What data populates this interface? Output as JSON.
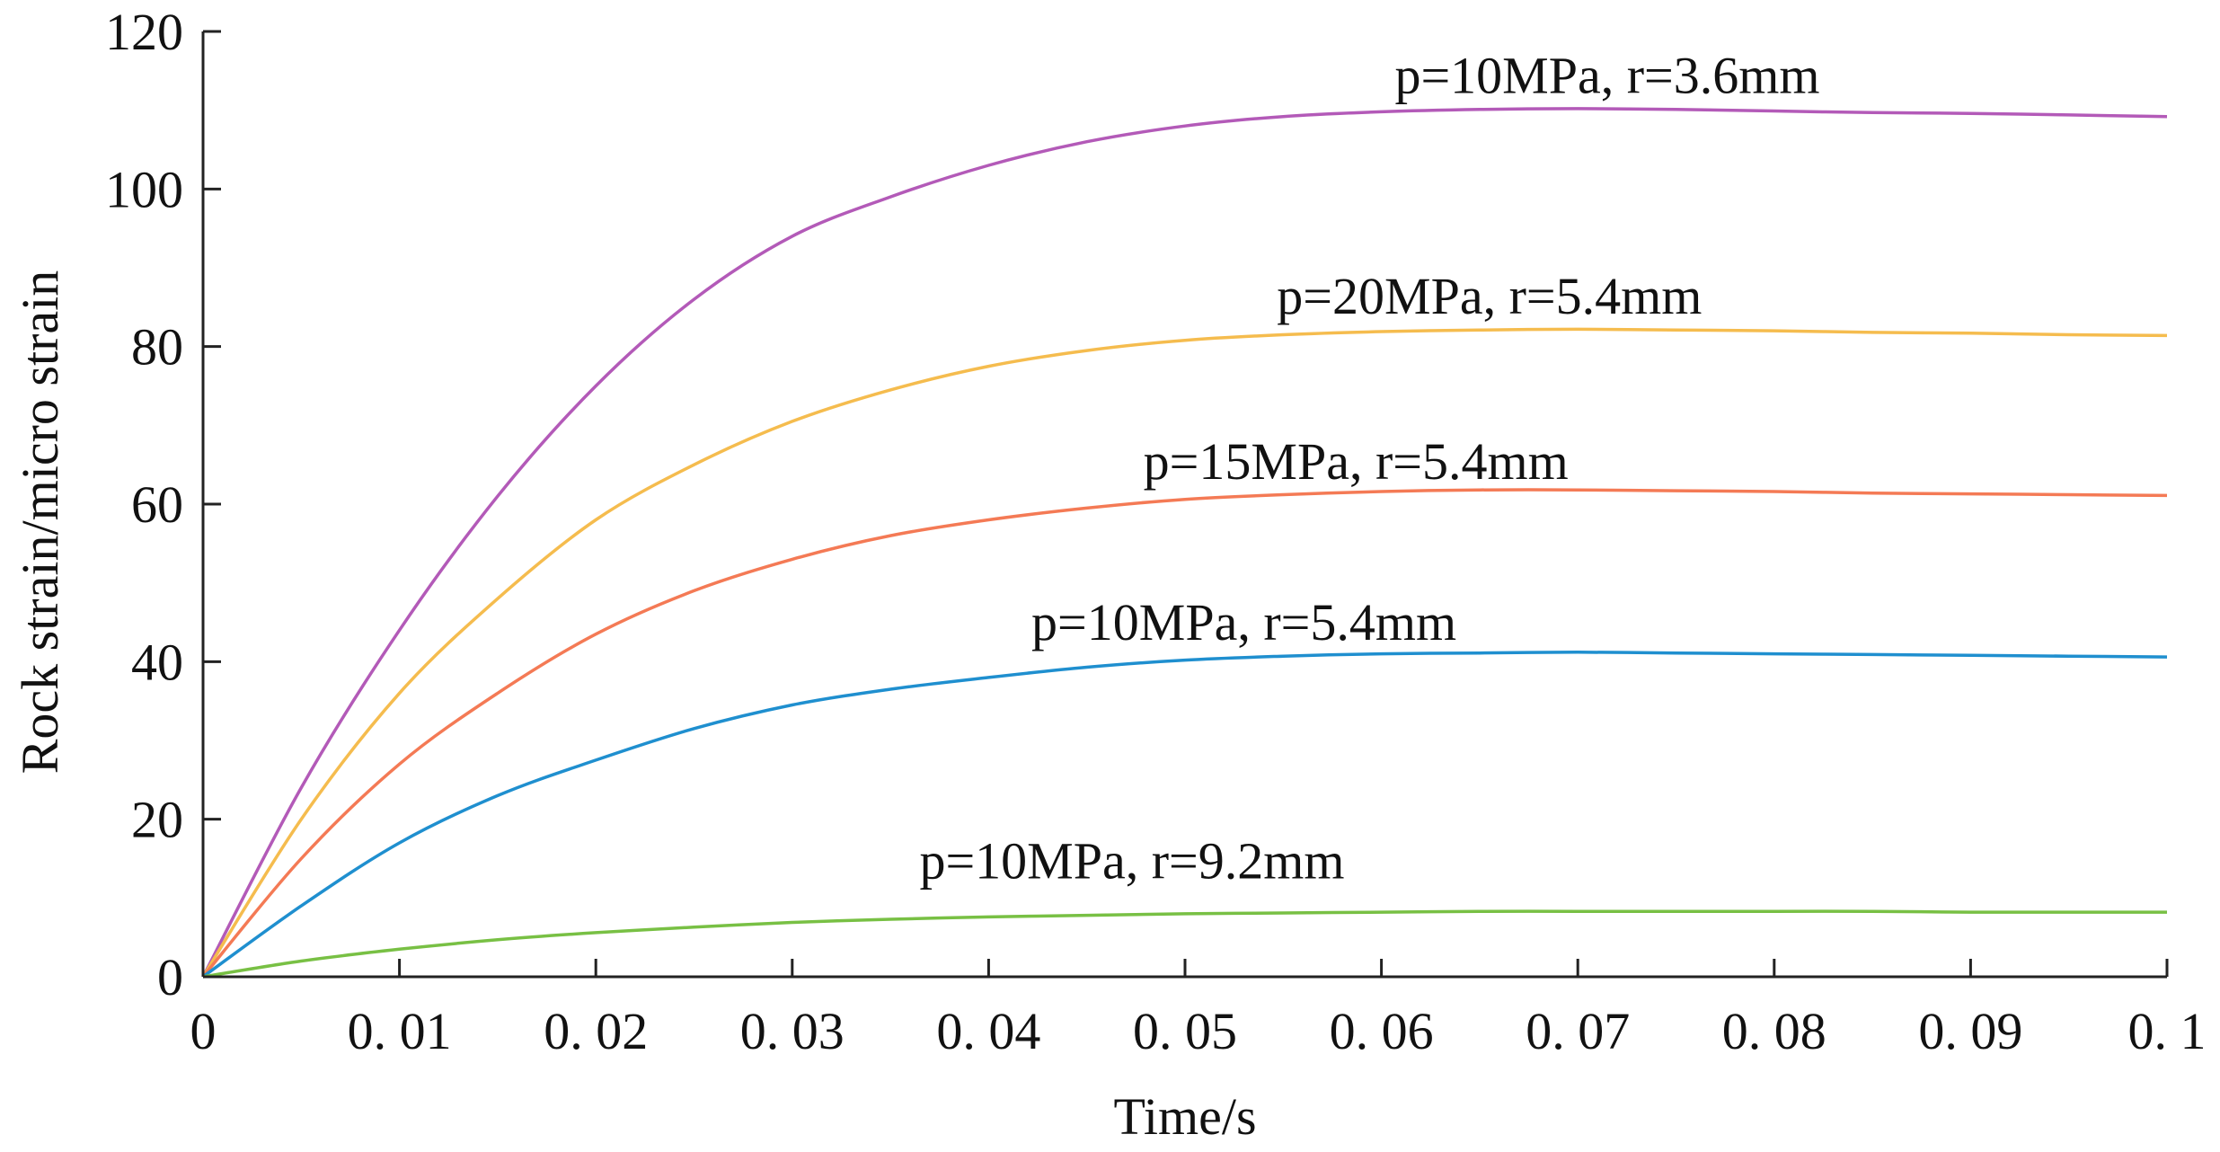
{
  "chart_data": {
    "type": "line",
    "title": "",
    "xlabel": "Time/s",
    "ylabel": "Rock strain/micro strain",
    "xlim": [
      0,
      0.1
    ],
    "ylim": [
      0,
      120
    ],
    "x_ticks": [
      0,
      0.01,
      0.02,
      0.03,
      0.04,
      0.05,
      0.06,
      0.07,
      0.08,
      0.09,
      0.1
    ],
    "x_tick_labels": [
      "0",
      "0. 01",
      "0. 02",
      "0. 03",
      "0. 04",
      "0. 05",
      "0. 06",
      "0. 07",
      "0. 08",
      "0. 09",
      "0. 1"
    ],
    "y_ticks": [
      0,
      20,
      40,
      60,
      80,
      100,
      120
    ],
    "y_tick_labels": [
      "0",
      "20",
      "40",
      "60",
      "80",
      "100",
      "120"
    ],
    "grid": false,
    "legend": "inline labels above curves",
    "series": [
      {
        "name": "p=10MPa, r=3.6mm",
        "color": "#b35ab8",
        "x": [
          0,
          0.005,
          0.01,
          0.015,
          0.02,
          0.025,
          0.03,
          0.035,
          0.04,
          0.045,
          0.05,
          0.055,
          0.06,
          0.065,
          0.07,
          0.075,
          0.08,
          0.085,
          0.09,
          0.095,
          0.1
        ],
        "y": [
          0,
          24,
          44,
          61,
          75,
          86,
          94,
          99,
          103,
          106,
          108,
          109.2,
          109.8,
          110.1,
          110.2,
          110.1,
          109.9,
          109.7,
          109.6,
          109.4,
          109.2
        ],
        "label_x": 0.0715,
        "label_y": 112.2
      },
      {
        "name": "p=20MPa, r=5.4mm",
        "color": "#f5bc4e",
        "x": [
          0,
          0.005,
          0.01,
          0.015,
          0.02,
          0.025,
          0.03,
          0.035,
          0.04,
          0.045,
          0.05,
          0.055,
          0.06,
          0.065,
          0.07,
          0.075,
          0.08,
          0.085,
          0.09,
          0.095,
          0.1
        ],
        "y": [
          0,
          20,
          36,
          48,
          58,
          65,
          70.5,
          74.5,
          77.5,
          79.5,
          80.8,
          81.5,
          81.9,
          82.1,
          82.2,
          82.1,
          82,
          81.8,
          81.7,
          81.5,
          81.4
        ],
        "label_x": 0.0655,
        "label_y": 84.2
      },
      {
        "name": "p=15MPa, r=5.4mm",
        "color": "#f47a55",
        "x": [
          0,
          0.005,
          0.01,
          0.015,
          0.02,
          0.025,
          0.03,
          0.035,
          0.04,
          0.045,
          0.05,
          0.055,
          0.06,
          0.065,
          0.07,
          0.075,
          0.08,
          0.085,
          0.09,
          0.095,
          0.1
        ],
        "y": [
          0,
          15,
          27,
          36,
          43.5,
          49,
          53,
          56,
          58,
          59.5,
          60.6,
          61.2,
          61.6,
          61.8,
          61.8,
          61.7,
          61.6,
          61.4,
          61.3,
          61.2,
          61.1
        ],
        "label_x": 0.0587,
        "label_y": 63.2
      },
      {
        "name": "p=10MPa, r=5.4mm",
        "color": "#1f8fcf",
        "x": [
          0,
          0.005,
          0.01,
          0.015,
          0.02,
          0.025,
          0.03,
          0.035,
          0.04,
          0.045,
          0.05,
          0.055,
          0.06,
          0.065,
          0.07,
          0.075,
          0.08,
          0.085,
          0.09,
          0.095,
          0.1
        ],
        "y": [
          0,
          9,
          17,
          23,
          27.5,
          31.5,
          34.5,
          36.5,
          38,
          39.3,
          40.2,
          40.7,
          41,
          41.1,
          41.2,
          41.1,
          41,
          40.9,
          40.8,
          40.7,
          40.6
        ],
        "label_x": 0.053,
        "label_y": 42.8
      },
      {
        "name": "p=10MPa, r=9.2mm",
        "color": "#78c044",
        "x": [
          0,
          0.005,
          0.01,
          0.015,
          0.02,
          0.025,
          0.03,
          0.035,
          0.04,
          0.045,
          0.05,
          0.055,
          0.06,
          0.065,
          0.07,
          0.075,
          0.08,
          0.085,
          0.09,
          0.095,
          0.1
        ],
        "y": [
          0,
          2,
          3.5,
          4.7,
          5.6,
          6.3,
          6.9,
          7.3,
          7.6,
          7.8,
          8,
          8.1,
          8.2,
          8.3,
          8.3,
          8.3,
          8.3,
          8.3,
          8.2,
          8.2,
          8.2
        ],
        "label_x": 0.0473,
        "label_y": 12.5
      }
    ]
  }
}
